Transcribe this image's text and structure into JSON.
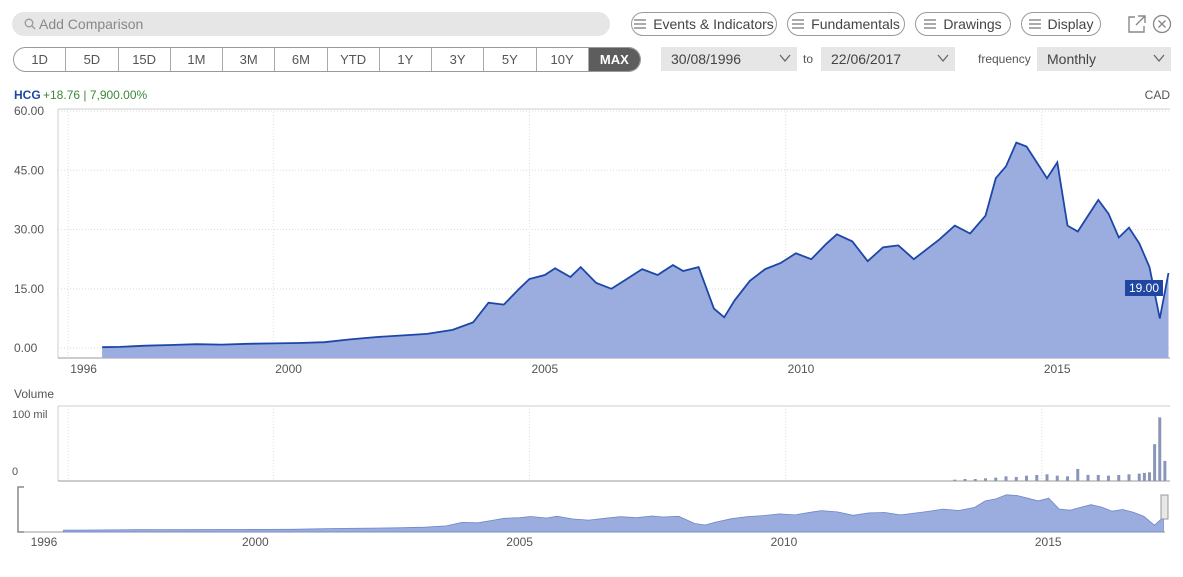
{
  "search": {
    "placeholder": "Add Comparison"
  },
  "toolbar": {
    "events_label": "Events & Indicators",
    "fundamentals_label": "Fundamentals",
    "drawings_label": "Drawings",
    "display_label": "Display"
  },
  "ranges": [
    "1D",
    "5D",
    "15D",
    "1M",
    "3M",
    "6M",
    "YTD",
    "1Y",
    "3Y",
    "5Y",
    "10Y",
    "MAX"
  ],
  "active_range": "MAX",
  "date_from": "30/08/1996",
  "date_to_label": "to",
  "date_to": "22/06/2017",
  "frequency_label": "frequency",
  "frequency": "Monthly",
  "ticker": "HCG",
  "change": "+18.76 | 7,900.00%",
  "currency": "CAD",
  "last_price_label": "19.00",
  "volume_label": "Volume",
  "colors": {
    "line": "#1c46a8",
    "fill": "#9badde",
    "accent": "#1f46a0",
    "change": "#3a8a3a",
    "volume": "#8a96b8"
  },
  "chart_data": {
    "type": "area",
    "series": [
      {
        "x": [
          1996.66,
          1997.0,
          1997.5,
          1998.0,
          1998.5,
          1999.0,
          1999.5,
          2000.0,
          2000.5,
          2001.0,
          2001.5,
          2002.0,
          2002.5,
          2003.0,
          2003.5,
          2003.9,
          2004.2,
          2004.5,
          2004.8,
          2005.0,
          2005.3,
          2005.5,
          2005.8,
          2006.0,
          2006.3,
          2006.6,
          2006.9,
          2007.2,
          2007.5,
          2007.8,
          2008.0,
          2008.3,
          2008.6,
          2008.8,
          2009.0,
          2009.3,
          2009.6,
          2009.9,
          2010.2,
          2010.5,
          2010.8,
          2011.0,
          2011.3,
          2011.6,
          2011.9,
          2012.2,
          2012.5,
          2012.8,
          2013.0,
          2013.3,
          2013.6,
          2013.9,
          2014.1,
          2014.3,
          2014.5,
          2014.7,
          2014.9,
          2015.1,
          2015.3,
          2015.5,
          2015.7,
          2015.9,
          2016.1,
          2016.3,
          2016.5,
          2016.7,
          2016.9,
          2017.1,
          2017.3,
          2017.47
        ],
        "y": [
          0.24,
          0.3,
          0.6,
          0.8,
          1.0,
          0.9,
          1.1,
          1.2,
          1.3,
          1.5,
          2.2,
          2.8,
          3.2,
          3.6,
          4.6,
          6.5,
          11.5,
          11.0,
          15.0,
          17.5,
          18.5,
          20.2,
          18.0,
          20.5,
          16.5,
          15.0,
          17.5,
          20.0,
          18.5,
          21.0,
          19.5,
          20.5,
          10.0,
          7.8,
          12.0,
          17.0,
          20.0,
          21.5,
          24.0,
          22.5,
          26.5,
          28.8,
          27.0,
          22.0,
          25.5,
          26.0,
          22.5,
          25.5,
          27.5,
          31.0,
          29.0,
          33.5,
          43.0,
          46.0,
          52.0,
          51.0,
          47.0,
          43.0,
          47.0,
          31.0,
          29.5,
          33.5,
          37.5,
          34.0,
          28.0,
          30.5,
          26.5,
          20.5,
          7.5,
          19.0
        ]
      }
    ],
    "xlim": [
      1995.8,
      2017.5
    ],
    "ylim": [
      -2.5,
      60.5
    ],
    "yticks": [
      "60.00",
      "45.00",
      "30.00",
      "15.00",
      "0.00"
    ],
    "xticks": [
      "1996",
      "2000",
      "2005",
      "2010",
      "2015"
    ],
    "volume": {
      "ylim": [
        0,
        100
      ],
      "yticks": [
        "100 mil",
        "0"
      ],
      "x": [
        2013.3,
        2013.5,
        2013.7,
        2013.9,
        2014.1,
        2014.3,
        2014.5,
        2014.7,
        2014.9,
        2015.1,
        2015.3,
        2015.5,
        2015.7,
        2015.9,
        2016.1,
        2016.3,
        2016.5,
        2016.7,
        2016.9,
        2017.0,
        2017.1,
        2017.2,
        2017.3,
        2017.4
      ],
      "values": [
        2,
        3,
        3,
        4,
        5,
        7,
        6,
        8,
        9,
        10,
        8,
        7,
        18,
        9,
        9,
        8,
        9,
        10,
        11,
        12,
        13,
        55,
        95,
        30
      ]
    },
    "navigator": {
      "xticks": [
        "1996",
        "2000",
        "2005",
        "2010",
        "2015"
      ]
    }
  }
}
